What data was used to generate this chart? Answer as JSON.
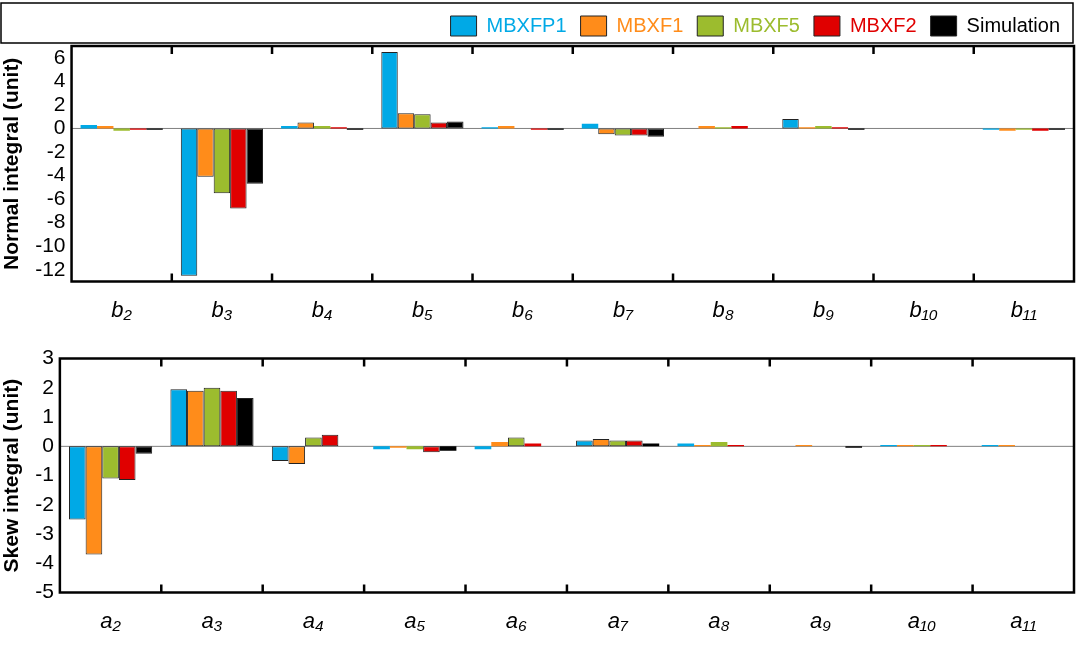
{
  "chart_data": [
    {
      "type": "bar",
      "ylabel": "Normal integral (unit)",
      "categories": [
        "b₂",
        "b₃",
        "b₄",
        "b₅",
        "b₆",
        "b₇",
        "b₈",
        "b₉",
        "b₁₀",
        "b₁₁"
      ],
      "series": [
        {
          "name": "MBXFP1",
          "color": "#00a9e6",
          "values": [
            0.3,
            -12.5,
            0.2,
            6.5,
            0.1,
            0.4,
            0,
            0.8,
            0,
            -0.1
          ]
        },
        {
          "name": "MBXF1",
          "color": "#ff8c1a",
          "values": [
            0.2,
            -4.1,
            0.5,
            1.3,
            0.2,
            -0.5,
            0.2,
            0.1,
            0,
            -0.2
          ]
        },
        {
          "name": "MBXF5",
          "color": "#9cbc2e",
          "values": [
            -0.2,
            -5.5,
            0.2,
            1.2,
            0,
            -0.6,
            0.1,
            0.2,
            0,
            -0.1
          ]
        },
        {
          "name": "MBXF2",
          "color": "#e00000",
          "values": [
            -0.1,
            -6.8,
            0.1,
            0.5,
            -0.1,
            -0.6,
            0.2,
            0.1,
            0,
            -0.2
          ]
        },
        {
          "name": "Simulation",
          "color": "#000000",
          "values": [
            -0.1,
            -4.7,
            -0.1,
            0.6,
            -0.1,
            -0.7,
            0,
            -0.1,
            0,
            -0.1
          ]
        }
      ],
      "ylim": [
        -13,
        7
      ],
      "yticks": [
        -12,
        -10,
        -8,
        -6,
        -4,
        -2,
        0,
        2,
        4,
        6
      ],
      "grid": false,
      "legend": "top",
      "ref_lines": [
        {
          "axis": "y",
          "value": 0,
          "color": "#808080"
        }
      ]
    },
    {
      "type": "bar",
      "ylabel": "Skew integral (unit)",
      "categories": [
        "a₂",
        "a₃",
        "a₄",
        "a₅",
        "a₆",
        "a₇",
        "a₈",
        "a₉",
        "a₁₀",
        "a₁₁"
      ],
      "series": [
        {
          "color": "#00a9e6",
          "values": [
            -2.5,
            1.95,
            -0.5,
            -0.1,
            -0.1,
            0.2,
            0.1,
            0,
            0.05,
            0.05
          ]
        },
        {
          "color": "#ff8c1a",
          "values": [
            -3.7,
            1.9,
            -0.6,
            -0.05,
            0.15,
            0.25,
            0.05,
            0.05,
            0.05,
            0.05
          ]
        },
        {
          "color": "#9cbc2e",
          "values": [
            -1.1,
            2.0,
            0.3,
            -0.1,
            0.3,
            0.2,
            0.15,
            0,
            0.05,
            0
          ]
        },
        {
          "color": "#e00000",
          "values": [
            -1.15,
            1.9,
            0.4,
            -0.2,
            0.1,
            0.2,
            0.05,
            0,
            0.05,
            0
          ]
        },
        {
          "color": "#000000",
          "values": [
            -0.25,
            1.65,
            0,
            -0.15,
            0,
            0.1,
            0,
            -0.05,
            0,
            0
          ]
        }
      ],
      "ylim": [
        -5,
        3
      ],
      "yticks": [
        -5,
        -4,
        -3,
        -2,
        -1,
        0,
        1,
        2,
        3
      ],
      "grid": false,
      "legend": false,
      "ref_lines": [
        {
          "axis": "y",
          "value": 0,
          "color": "#808080"
        }
      ]
    }
  ]
}
